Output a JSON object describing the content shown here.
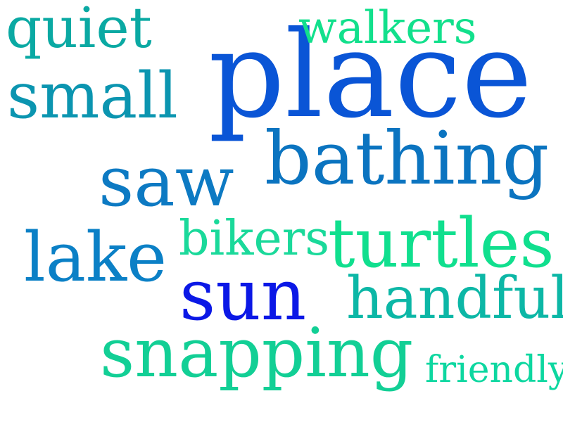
{
  "words": {
    "place": {
      "text": "place",
      "color": "#0a55d6"
    },
    "bathing": {
      "text": "bathing",
      "color": "#0b74c0"
    },
    "saw": {
      "text": "saw",
      "color": "#0d7ac3"
    },
    "small": {
      "text": "small",
      "color": "#0b95b0"
    },
    "quiet": {
      "text": "quiet",
      "color": "#0aa9a3"
    },
    "walkers": {
      "text": "walkers",
      "color": "#12e08c"
    },
    "turtles": {
      "text": "turtles",
      "color": "#10df8e"
    },
    "bikers": {
      "text": "bikers",
      "color": "#1ad99a"
    },
    "lake": {
      "text": "lake",
      "color": "#0b80c6"
    },
    "sun": {
      "text": "sun",
      "color": "#0b18e6"
    },
    "handful": {
      "text": "handful",
      "color": "#0cb7a6"
    },
    "snapping": {
      "text": "snapping",
      "color": "#12cf95"
    },
    "friendly": {
      "text": "friendly",
      "color": "#0dd7a0"
    }
  }
}
